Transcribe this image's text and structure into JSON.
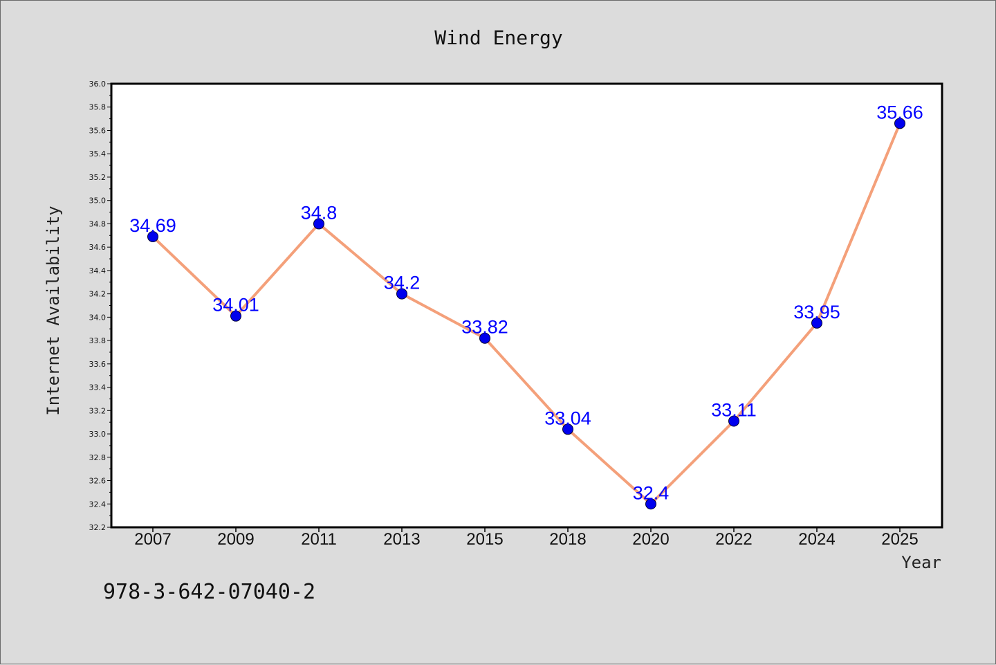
{
  "note": "978-3-642-07040-2",
  "chart_data": {
    "type": "line",
    "title": "Wind Energy",
    "xlabel": "Year",
    "ylabel": "Internet Availability",
    "categories": [
      "2007",
      "2009",
      "2011",
      "2013",
      "2015",
      "2018",
      "2020",
      "2022",
      "2024",
      "2025"
    ],
    "series": [
      {
        "values": [
          34.69,
          34.01,
          34.8,
          34.2,
          33.82,
          33.04,
          32.4,
          33.11,
          33.95,
          35.66
        ]
      }
    ],
    "data_labels": [
      "34.69",
      "34.01",
      "34.8",
      "34.2",
      "33.82",
      "33.04",
      "32.4",
      "33.11",
      "33.95",
      "35.66"
    ],
    "ylim": [
      32.2,
      36.0
    ],
    "yticks": [
      "32.2",
      "32.4",
      "32.6",
      "32.8",
      "33.0",
      "33.2",
      "33.4",
      "33.6",
      "33.8",
      "34.0",
      "34.2",
      "34.4",
      "34.6",
      "34.8",
      "35.0",
      "35.2",
      "35.4",
      "35.6",
      "35.8",
      "36.0"
    ],
    "grid": false,
    "legend": "none",
    "colors": {
      "line": "#f4a07a",
      "marker": "#0000ee",
      "label": "#0000ff",
      "background": "#dcdcdc",
      "plot_background": "#ffffff"
    }
  }
}
